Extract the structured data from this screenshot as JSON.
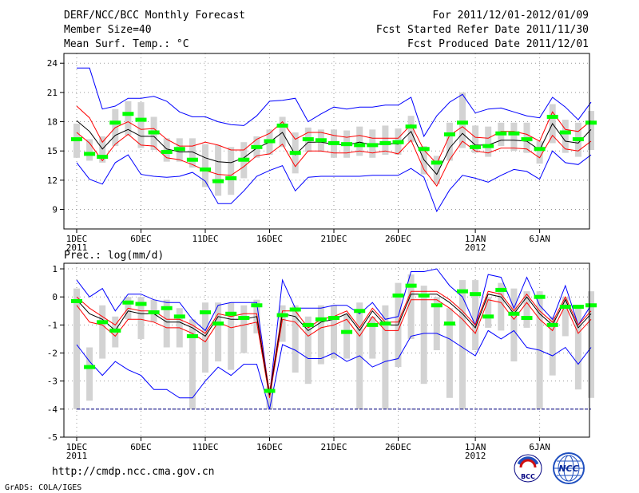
{
  "header": {
    "title": "DERF/NCC/BCC Monthly Forecast",
    "member_size": "Member Size=40",
    "variable": "Mean Surf. Temp.: °C",
    "period": "For 2011/12/01-2012/01/09",
    "started": "Fcst Started Refer Date 2011/11/30",
    "produced": "Fcst Produced Date 2011/12/01"
  },
  "footer": {
    "url": "http://cmdp.ncc.cma.gov.cn",
    "grads": "GrADS: COLA/IGES",
    "logo_bcc": "BCC",
    "logo_ncc": "NCC"
  },
  "colors": {
    "max_min": "#0000ff",
    "pct": "#ff0000",
    "mean": "#000000",
    "median": "#00ff00",
    "box": "#d3d3d3",
    "dry_line": "#000080"
  },
  "chart_data": [
    {
      "type": "line",
      "title": "Mean Surf. Temp.: °C",
      "days": 40,
      "ylim": [
        7,
        25
      ],
      "yticks": [
        9,
        12,
        15,
        18,
        21,
        24
      ],
      "xtick_labels": [
        {
          "day": 1,
          "label": "1DEC",
          "sub": "2011"
        },
        {
          "day": 6,
          "label": "6DEC"
        },
        {
          "day": 11,
          "label": "11DEC"
        },
        {
          "day": 16,
          "label": "16DEC"
        },
        {
          "day": 21,
          "label": "21DEC"
        },
        {
          "day": 26,
          "label": "26DEC"
        },
        {
          "day": 32,
          "label": "1JAN",
          "sub": "2012"
        },
        {
          "day": 37,
          "label": "6JAN"
        }
      ],
      "series": {
        "max": [
          23.5,
          23.5,
          19.3,
          19.6,
          20.4,
          20.4,
          20.6,
          20.1,
          19.0,
          18.5,
          18.5,
          18.0,
          17.7,
          17.6,
          18.6,
          20.1,
          20.2,
          20.4,
          18.0,
          18.8,
          19.5,
          19.3,
          19.5,
          19.5,
          19.7,
          19.7,
          20.5,
          16.5,
          18.6,
          20.0,
          20.8,
          18.9,
          19.3,
          19.4,
          19.0,
          18.6,
          18.4,
          20.5,
          19.5,
          18.2,
          20.0
        ],
        "p90": [
          19.6,
          18.4,
          15.9,
          17.4,
          18.0,
          17.2,
          17.3,
          16.2,
          15.5,
          15.5,
          15.9,
          15.6,
          15.1,
          15.1,
          16.2,
          16.8,
          18.0,
          16.2,
          16.9,
          16.9,
          16.6,
          16.4,
          16.6,
          16.3,
          16.3,
          16.3,
          17.7,
          15.1,
          13.7,
          16.6,
          17.5,
          16.4,
          16.3,
          17.0,
          17.0,
          16.7,
          16.0,
          19.0,
          17.2,
          17.0,
          18.1
        ],
        "mean": [
          18.1,
          17.0,
          15.2,
          16.6,
          17.2,
          16.5,
          16.5,
          15.2,
          14.9,
          14.9,
          14.3,
          13.9,
          13.8,
          14.3,
          15.3,
          15.9,
          16.9,
          14.6,
          15.9,
          15.9,
          15.7,
          15.6,
          15.9,
          15.6,
          15.8,
          15.7,
          17.0,
          14.1,
          12.6,
          15.3,
          16.8,
          15.6,
          15.6,
          16.1,
          16.1,
          16.0,
          15.1,
          17.8,
          16.0,
          15.8,
          17.2
        ],
        "p10": [
          16.9,
          15.8,
          14.0,
          15.7,
          16.7,
          15.6,
          15.5,
          14.3,
          14.1,
          13.6,
          13.0,
          12.6,
          12.5,
          13.4,
          14.5,
          14.7,
          15.7,
          13.4,
          15.0,
          15.0,
          14.8,
          14.8,
          15.0,
          14.8,
          15.0,
          14.7,
          16.1,
          13.1,
          11.4,
          14.1,
          16.0,
          15.0,
          14.8,
          15.3,
          15.3,
          15.2,
          14.3,
          16.6,
          15.2,
          15.0,
          16.0
        ],
        "min": [
          13.8,
          12.1,
          11.6,
          13.8,
          14.6,
          12.6,
          12.4,
          12.3,
          12.4,
          12.8,
          11.9,
          9.6,
          9.6,
          10.9,
          12.4,
          13.0,
          13.5,
          10.9,
          12.3,
          12.4,
          12.4,
          12.4,
          12.4,
          12.5,
          12.5,
          12.5,
          13.2,
          12.3,
          8.8,
          11.0,
          12.5,
          12.2,
          11.8,
          12.5,
          13.1,
          12.9,
          12.1,
          15.0,
          13.8,
          13.6,
          14.6
        ],
        "median": [
          16.2,
          14.7,
          14.4,
          17.9,
          18.8,
          18.2,
          16.9,
          14.9,
          15.2,
          14.1,
          13.1,
          11.9,
          12.2,
          14.1,
          15.4,
          16.0,
          17.6,
          14.8,
          16.2,
          16.1,
          15.8,
          15.7,
          15.6,
          15.6,
          15.8,
          15.9,
          17.5,
          15.2,
          13.8,
          16.7,
          17.9,
          15.4,
          15.5,
          16.8,
          16.8,
          16.2,
          15.2,
          18.5,
          16.9,
          16.2,
          17.9
        ],
        "box_lo": [
          14.3,
          14.0,
          13.8,
          15.5,
          16.6,
          15.3,
          15.1,
          13.9,
          13.9,
          13.3,
          11.3,
          10.4,
          10.5,
          12.2,
          14.3,
          14.6,
          15.4,
          12.7,
          14.9,
          14.9,
          14.3,
          14.3,
          14.5,
          14.3,
          14.6,
          14.6,
          15.9,
          12.6,
          11.6,
          14.0,
          15.3,
          14.8,
          14.4,
          15.5,
          15.0,
          14.8,
          13.7,
          15.8,
          14.8,
          14.4,
          15.1
        ],
        "box_hi": [
          17.8,
          16.2,
          16.5,
          19.3,
          20.1,
          20.0,
          18.5,
          16.3,
          16.3,
          16.3,
          15.7,
          15.6,
          15.4,
          15.9,
          16.5,
          17.2,
          18.5,
          16.9,
          17.4,
          17.2,
          17.2,
          17.1,
          17.5,
          17.2,
          17.6,
          17.3,
          18.6,
          15.5,
          14.5,
          17.9,
          21.0,
          17.6,
          17.5,
          17.9,
          17.9,
          17.9,
          16.0,
          19.8,
          18.2,
          17.9,
          19.1
        ]
      }
    },
    {
      "type": "line",
      "title": "Prec.: log(mm/d)",
      "days": 40,
      "ylim": [
        -5,
        1.2
      ],
      "yticks": [
        -5,
        -4,
        -3,
        -2,
        -1,
        0,
        1
      ],
      "xtick_labels": [
        {
          "day": 1,
          "label": "1DEC",
          "sub": "2011"
        },
        {
          "day": 6,
          "label": "6DEC"
        },
        {
          "day": 11,
          "label": "11DEC"
        },
        {
          "day": 16,
          "label": "16DEC"
        },
        {
          "day": 21,
          "label": "21DEC"
        },
        {
          "day": 26,
          "label": "26DEC"
        },
        {
          "day": 32,
          "label": "1JAN",
          "sub": "2012"
        },
        {
          "day": 37,
          "label": "6JAN"
        }
      ],
      "dry_floor": -4,
      "series": {
        "max": [
          0.6,
          0.0,
          0.3,
          -0.5,
          0.1,
          0.1,
          -0.1,
          -0.2,
          -0.2,
          -0.8,
          -1.2,
          -0.3,
          -0.2,
          -0.2,
          -0.2,
          -3.5,
          0.6,
          -0.4,
          -0.4,
          -0.4,
          -0.3,
          -0.3,
          -0.6,
          -0.2,
          -0.8,
          -0.7,
          0.9,
          0.9,
          1.0,
          0.4,
          0.0,
          -1.0,
          0.8,
          0.7,
          -0.4,
          0.7,
          -0.3,
          -0.8,
          0.4,
          -1.0,
          -0.3
        ],
        "p90": [
          0.0,
          -0.4,
          -0.7,
          -1.0,
          -0.4,
          -0.5,
          -0.5,
          -0.8,
          -0.8,
          -1.0,
          -1.3,
          -0.6,
          -0.7,
          -0.6,
          -0.6,
          -3.4,
          -0.5,
          -0.5,
          -1.1,
          -0.8,
          -0.7,
          -0.5,
          -1.1,
          -0.4,
          -0.9,
          -0.9,
          0.2,
          0.2,
          0.2,
          -0.1,
          -0.5,
          -1.0,
          0.2,
          0.1,
          -0.5,
          0.1,
          -0.5,
          -0.9,
          0.0,
          -1.0,
          -0.5
        ],
        "mean": [
          -0.1,
          -0.6,
          -0.8,
          -1.2,
          -0.5,
          -0.6,
          -0.6,
          -0.9,
          -0.9,
          -1.1,
          -1.4,
          -0.7,
          -0.8,
          -0.8,
          -0.7,
          -3.5,
          -0.6,
          -0.7,
          -1.2,
          -0.9,
          -0.8,
          -0.6,
          -1.2,
          -0.5,
          -1.0,
          -1.0,
          0.1,
          0.1,
          0.1,
          -0.2,
          -0.6,
          -1.1,
          0.1,
          0.0,
          -0.6,
          0.0,
          -0.6,
          -1.0,
          -0.1,
          -1.1,
          -0.6
        ],
        "p10": [
          -0.3,
          -0.9,
          -1.0,
          -1.4,
          -0.8,
          -0.8,
          -0.9,
          -1.1,
          -1.1,
          -1.3,
          -1.6,
          -0.9,
          -1.1,
          -1.0,
          -0.9,
          -3.6,
          -0.8,
          -0.9,
          -1.4,
          -1.1,
          -1.0,
          -0.8,
          -1.4,
          -0.7,
          -1.2,
          -1.2,
          -0.1,
          -0.1,
          -0.1,
          -0.4,
          -0.8,
          -1.3,
          -0.1,
          -0.2,
          -0.8,
          -0.2,
          -0.8,
          -1.2,
          -0.3,
          -1.3,
          -0.8
        ],
        "min": [
          -1.7,
          -2.3,
          -2.8,
          -2.3,
          -2.6,
          -2.8,
          -3.3,
          -3.3,
          -3.6,
          -3.6,
          -3.0,
          -2.5,
          -2.8,
          -2.4,
          -2.4,
          -4.0,
          -1.7,
          -1.9,
          -2.2,
          -2.2,
          -2.0,
          -2.3,
          -2.1,
          -2.5,
          -2.3,
          -2.2,
          -1.4,
          -1.3,
          -1.3,
          -1.5,
          -1.8,
          -2.1,
          -1.2,
          -1.5,
          -1.2,
          -1.8,
          -1.9,
          -2.1,
          -1.8,
          -2.4,
          -1.8
        ],
        "median": [
          -0.15,
          -2.5,
          -0.9,
          -1.2,
          -0.2,
          -0.25,
          -0.55,
          -0.4,
          -0.7,
          -1.4,
          -0.55,
          -0.95,
          -0.6,
          -0.75,
          -0.3,
          -3.35,
          -0.65,
          -0.45,
          -1.0,
          -0.8,
          -0.75,
          -1.25,
          -0.5,
          -1.0,
          -0.95,
          0.05,
          0.4,
          0.05,
          -0.3,
          -0.95,
          0.2,
          0.1,
          -0.7,
          0.25,
          -0.6,
          -0.75,
          0.0,
          -1.0,
          -0.35,
          -0.35,
          -0.3
        ],
        "box_lo": [
          -4.0,
          -3.7,
          -2.2,
          -1.8,
          -0.8,
          -1.5,
          -0.9,
          -1.8,
          -1.8,
          -4.0,
          -2.7,
          -2.3,
          -2.6,
          -2.0,
          -1.3,
          -4.0,
          -1.6,
          -2.7,
          -3.1,
          -2.4,
          -2.2,
          -2.2,
          -4.0,
          -2.2,
          -4.0,
          -2.5,
          -1.5,
          -3.1,
          -1.9,
          -3.6,
          -4.0,
          -1.9,
          -1.1,
          -1.2,
          -2.3,
          -1.1,
          -4.0,
          -2.8,
          -1.4,
          -3.3,
          -3.6
        ],
        "box_hi": [
          0.3,
          -1.8,
          -0.3,
          -0.7,
          0.0,
          0.0,
          -0.1,
          -0.1,
          -0.4,
          -0.8,
          -0.2,
          -0.2,
          -0.2,
          -0.3,
          -0.1,
          -3.2,
          -0.3,
          -0.3,
          -0.7,
          -0.3,
          -0.3,
          -0.6,
          -0.2,
          -0.7,
          -0.3,
          0.5,
          0.8,
          0.4,
          0.0,
          -0.4,
          0.6,
          0.6,
          0.0,
          0.5,
          0.3,
          0.2,
          0.2,
          -0.7,
          0.0,
          -0.3,
          0.2
        ]
      }
    }
  ]
}
